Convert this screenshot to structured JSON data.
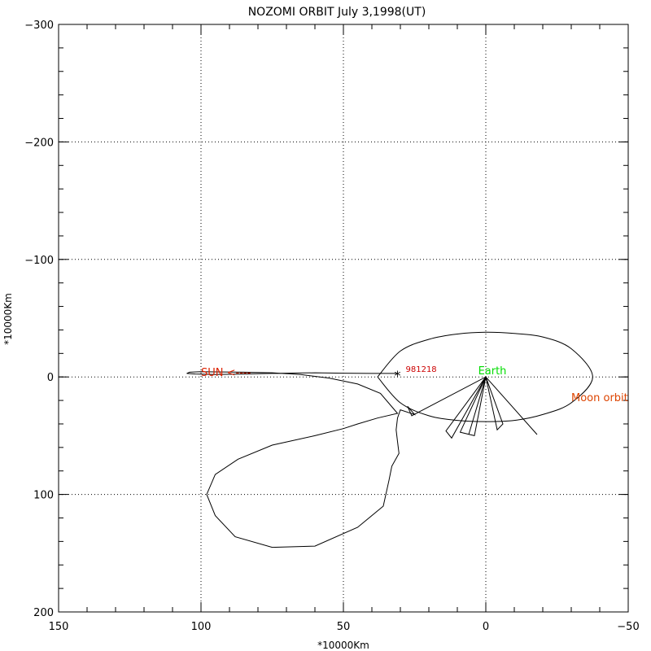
{
  "chart_data": {
    "type": "line",
    "title": "NOZOMI ORBIT July 3,1998(UT)",
    "xlabel": "*10000Km",
    "ylabel": "*10000Km",
    "xlim": [
      150,
      -50
    ],
    "ylim": [
      -300,
      200
    ],
    "grid": true,
    "x_ticks": [
      150,
      100,
      50,
      0,
      -50
    ],
    "y_ticks": [
      -300,
      -200,
      -100,
      0,
      100,
      200
    ],
    "annotations": {
      "sun": {
        "text": "SUN <----",
        "color": "#dd2200",
        "x": 100,
        "y": 0
      },
      "earth": {
        "text": "Earth",
        "color": "#00dd00",
        "x": 0,
        "y": 0
      },
      "moon_orbit": {
        "text": "Moon orbit",
        "color": "#dd4400",
        "x": -30,
        "y": 18
      },
      "date": {
        "text": "981218",
        "color": "#cc0000",
        "x": 31,
        "y": -3
      }
    },
    "marker": {
      "symbol": "*",
      "x": 31,
      "y": -3
    },
    "series": [
      {
        "role": "moon-orbit",
        "x": [
          38,
          30,
          20,
          10,
          0,
          -10,
          -20,
          -30,
          -37.5,
          -30,
          -20,
          -10,
          0,
          10,
          20,
          30,
          38
        ],
        "y": [
          0,
          -22,
          -32,
          -36.5,
          -38,
          -37,
          -34,
          -24,
          0,
          22,
          32,
          37,
          38,
          37,
          33,
          22,
          0
        ]
      },
      {
        "role": "nozomi-trajectory",
        "x": [
          0,
          14,
          12,
          0,
          9,
          4,
          0,
          6,
          0,
          -4,
          -6,
          0,
          -18,
          0,
          26,
          27.5,
          25,
          30,
          31,
          31.5,
          31,
          30.5,
          33,
          34,
          36,
          45,
          60,
          75,
          88,
          95,
          98,
          95,
          87,
          75,
          60,
          50,
          45,
          38,
          31,
          37,
          45,
          55,
          65,
          75,
          85,
          95,
          100,
          104,
          105,
          102,
          95,
          85,
          75,
          60,
          50,
          40,
          31
        ],
        "y": [
          0,
          46,
          52,
          0,
          47,
          50,
          0,
          49,
          0,
          45,
          40,
          0,
          49,
          0,
          33,
          25,
          32,
          28,
          35,
          45,
          55,
          65,
          76,
          88,
          110,
          128,
          144,
          145,
          136,
          118,
          100,
          83,
          70,
          58,
          50,
          44,
          40,
          35,
          31,
          14,
          6,
          1,
          -2,
          -3.5,
          -4,
          -4.3,
          -4.5,
          -4,
          -3,
          -2.5,
          -2,
          -2.5,
          -3,
          -3.5,
          -3.2,
          -3,
          -3
        ]
      }
    ]
  }
}
